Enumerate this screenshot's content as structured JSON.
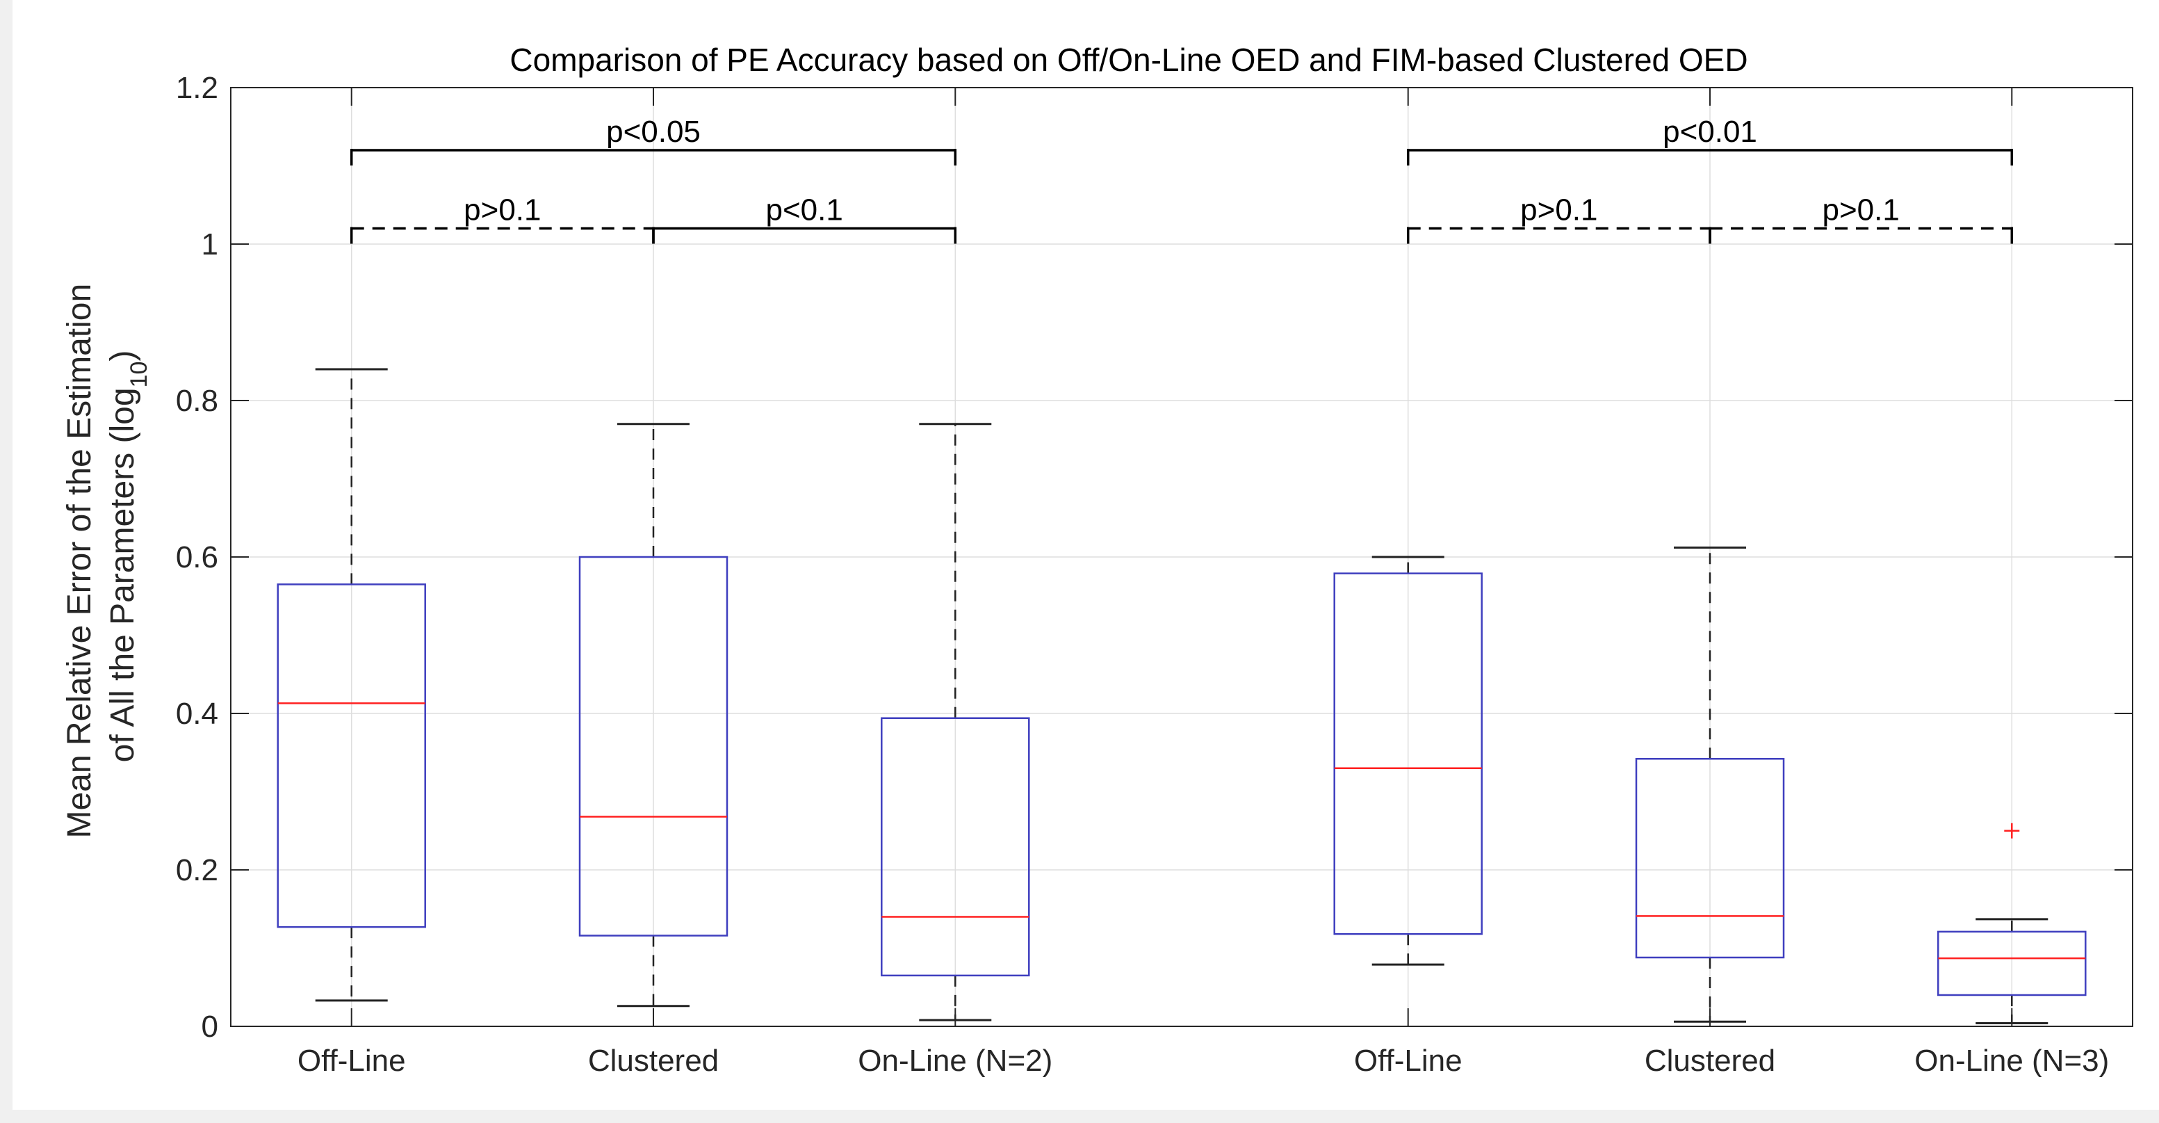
{
  "chart_data": {
    "type": "box",
    "title": "Comparison of PE Accuracy based on Off/On-Line OED and FIM-based Clustered OED",
    "ylabel_line1": "Mean Relative Error of the Estimation",
    "ylabel_line2": "of All the Parameters (log",
    "ylabel_sub": "10",
    "ylabel_close": ")",
    "ylim": [
      0,
      1.2
    ],
    "yticks": [
      0,
      0.2,
      0.4,
      0.6,
      0.8,
      1,
      1.2
    ],
    "ytick_labels": [
      "0",
      "0.2",
      "0.4",
      "0.6",
      "0.8",
      "1",
      "1.2"
    ],
    "grid": true,
    "categories": [
      "Off-Line",
      "Clustered",
      "On-Line (N=2)",
      "Off-Line",
      "Clustered",
      "On-Line (N=3)"
    ],
    "x_positions": [
      1,
      2,
      3,
      4.5,
      5.5,
      6.5
    ],
    "xlim": [
      0.6,
      6.9
    ],
    "boxes": [
      {
        "whisker_low": 0.033,
        "q1": 0.127,
        "median": 0.413,
        "q3": 0.565,
        "whisker_high": 0.84,
        "outliers": []
      },
      {
        "whisker_low": 0.026,
        "q1": 0.116,
        "median": 0.268,
        "q3": 0.6,
        "whisker_high": 0.77,
        "outliers": []
      },
      {
        "whisker_low": 0.008,
        "q1": 0.065,
        "median": 0.14,
        "q3": 0.394,
        "whisker_high": 0.77,
        "outliers": []
      },
      {
        "whisker_low": 0.079,
        "q1": 0.118,
        "median": 0.33,
        "q3": 0.579,
        "whisker_high": 0.6,
        "outliers": []
      },
      {
        "whisker_low": 0.006,
        "q1": 0.088,
        "median": 0.141,
        "q3": 0.342,
        "whisker_high": 0.612,
        "outliers": []
      },
      {
        "whisker_low": 0.004,
        "q1": 0.04,
        "median": 0.087,
        "q3": 0.121,
        "whisker_high": 0.137,
        "outliers": [
          0.25
        ]
      }
    ],
    "significance": [
      {
        "from": 1,
        "to": 3,
        "y": 1.12,
        "label": "p<0.05",
        "style": "solid"
      },
      {
        "from": 1,
        "to": 2,
        "y": 1.02,
        "label": "p>0.1",
        "style": "dashed"
      },
      {
        "from": 2,
        "to": 3,
        "y": 1.02,
        "label": "p<0.1",
        "style": "solid"
      },
      {
        "from": 4.5,
        "to": 6.5,
        "y": 1.12,
        "label": "p<0.01",
        "style": "solid"
      },
      {
        "from": 4.5,
        "to": 5.5,
        "y": 1.02,
        "label": "p>0.1",
        "style": "dashed"
      },
      {
        "from": 5.5,
        "to": 6.5,
        "y": 1.02,
        "label": "p>0.1",
        "style": "dashed"
      }
    ],
    "colors": {
      "box": "#3f3fbf",
      "median": "#ff2020",
      "whisker": "#222222",
      "outlier": "#ff2020",
      "grid": "#dedede",
      "axis": "#262626"
    }
  }
}
